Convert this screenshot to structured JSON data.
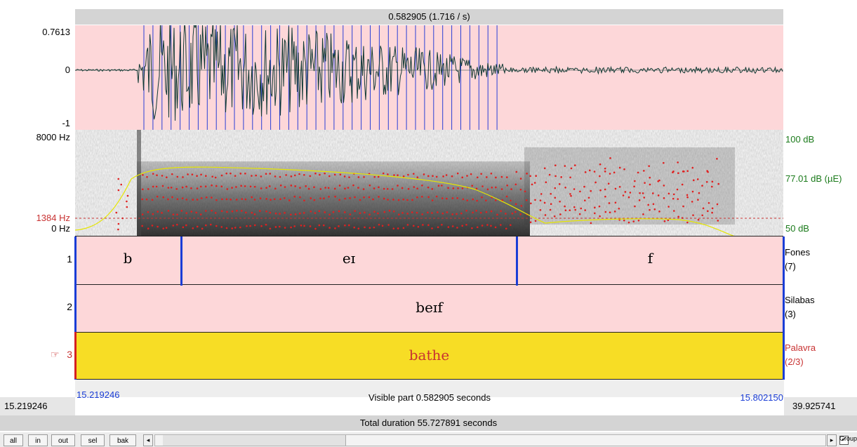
{
  "selection_header": "0.582905 (1.716 / s)",
  "waveform": {
    "max_label": "0.7613",
    "zero_label": "0",
    "min_label": "-1"
  },
  "spectrogram": {
    "top_label": "8000 Hz",
    "cursor_label": "1384 Hz",
    "bottom_label": "0 Hz",
    "right_top": "100 dB",
    "right_mid": "77.01 dB (µE)",
    "right_bottom": "50 dB"
  },
  "tiers": [
    {
      "number": "1",
      "name": "Fones",
      "count": "(7)",
      "intervals": [
        "b",
        "eɪ",
        "f"
      ]
    },
    {
      "number": "2",
      "name": "Silabas",
      "count": "(3)",
      "intervals": [
        "beɪf"
      ]
    },
    {
      "number": "3",
      "name": "Palavra",
      "count": "(2/3)",
      "intervals": [
        "bathe"
      ],
      "pointer": "☞"
    }
  ],
  "time": {
    "window_start": "15.219246",
    "view_start": "15.219246",
    "visible_part": "Visible part 0.582905 seconds",
    "view_end": "15.802150",
    "window_end": "39.925741",
    "total_duration": "Total duration 55.727891 seconds"
  },
  "buttons": {
    "all": "all",
    "in": "in",
    "out": "out",
    "sel": "sel",
    "bak": "bak"
  },
  "group": {
    "label": "Group",
    "checked": true
  }
}
